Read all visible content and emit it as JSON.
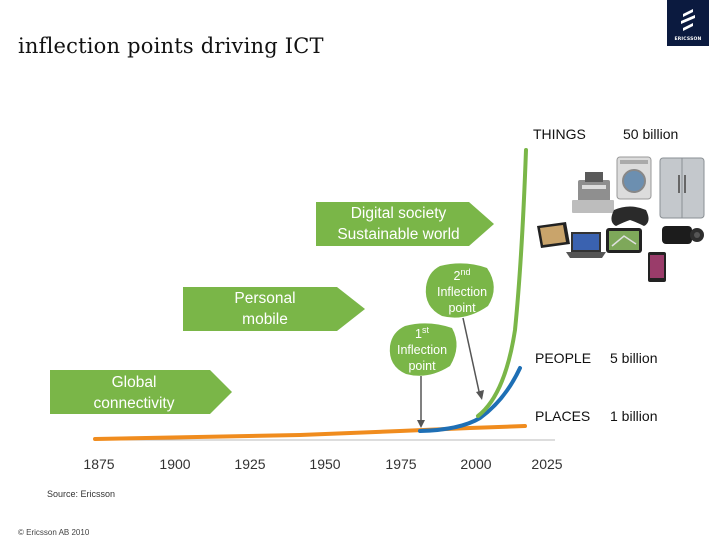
{
  "title": "inflection points driving ICT",
  "logo": {
    "text": "ERICSSON"
  },
  "categories": {
    "things_label": "THINGS",
    "things_value": "50 billion",
    "people_label": "PEOPLE",
    "people_value": "5 billion",
    "places_label": "PLACES",
    "places_value": "1 billion"
  },
  "arrows": {
    "global": [
      "Global",
      "connectivity"
    ],
    "personal": [
      "Personal",
      "mobile"
    ],
    "digital": [
      "Digital society",
      "Sustainable world"
    ]
  },
  "inflections": {
    "first": {
      "ordinal": "1",
      "suffix": "st",
      "line1": "Inflection",
      "line2": "point"
    },
    "second": {
      "ordinal": "2",
      "suffix": "nd",
      "line1": "Inflection",
      "line2": "point"
    }
  },
  "years": [
    "1875",
    "1900",
    "1925",
    "1950",
    "1975",
    "2000",
    "2025"
  ],
  "source": "Source: Ericsson",
  "copyright": "© Ericsson AB 2010",
  "colors": {
    "green": "#7ab648",
    "orange": "#f08c1e",
    "blue": "#1e6fb5",
    "grey": "#555555"
  },
  "icons": [
    "cash-register-icon",
    "washing-machine-icon",
    "refrigerator-icon",
    "tablet-icon",
    "laptop-icon",
    "gps-icon",
    "gamepad-icon",
    "camcorder-icon",
    "smartphone-icon"
  ]
}
